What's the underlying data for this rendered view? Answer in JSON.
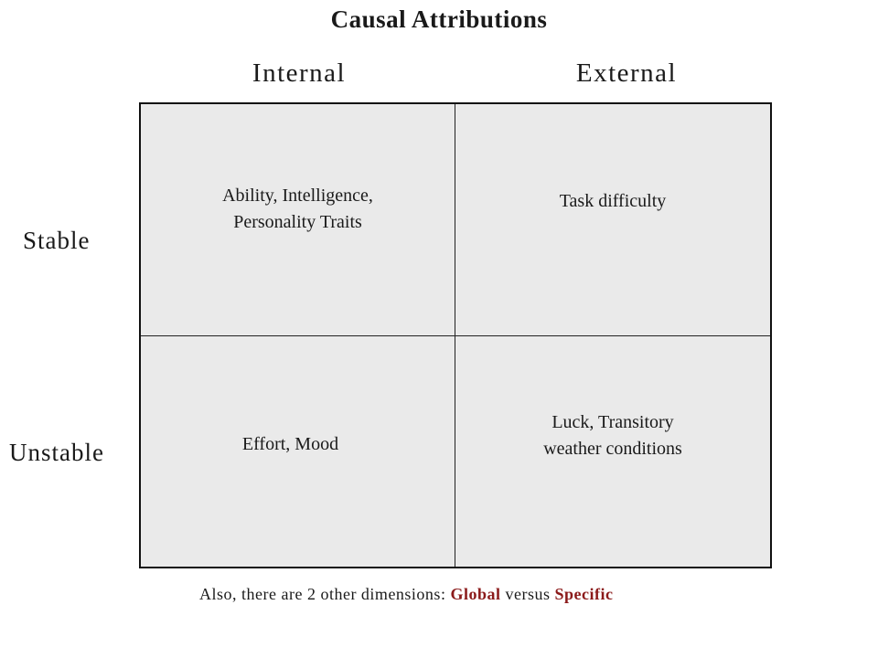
{
  "title": "Causal Attributions",
  "columns": {
    "internal": "Internal",
    "external": "External"
  },
  "rows": {
    "stable": "Stable",
    "unstable": "Unstable"
  },
  "cells": {
    "stable_internal": "Ability, Intelligence,\nPersonality Traits",
    "stable_external": "Task difficulty",
    "unstable_internal": "Effort, Mood",
    "unstable_external": "Luck, Transitory\nweather conditions"
  },
  "footnote": {
    "prefix": "Also, there are 2 other dimensions: ",
    "term1": "Global",
    "middle": " versus ",
    "term2": "Specific"
  },
  "colors": {
    "cell_fill": "#eaeaea",
    "accent": "#8b1a1a"
  }
}
